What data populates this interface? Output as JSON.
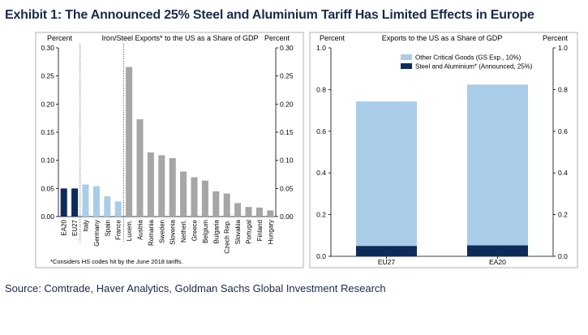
{
  "title": "Exhibit 1: The Announced 25% Steel and Aluminium Tariff Has Limited Effects in Europe",
  "source": "Source: Comtrade, Haver Analytics, Goldman Sachs Global Investment Research",
  "colors": {
    "navy": "#0d2c5a",
    "light_blue": "#a9cde8",
    "gray": "#a6a6a6"
  },
  "chart_data": [
    {
      "type": "bar",
      "title": "Iron/Steel Exports* to the US as a Share of GDP",
      "ylabel_left": "Percent",
      "ylabel_right": "Percent",
      "ylim": [
        0,
        0.3
      ],
      "yticks": [
        "0.00",
        "0.05",
        "0.10",
        "0.15",
        "0.20",
        "0.25",
        "0.30"
      ],
      "footnote": "*Considers HS codes hit by the June 2018 tariffs.",
      "categories": [
        "EA20",
        "EU27",
        "Italy",
        "Germany",
        "Spain",
        "France",
        "Luxem.",
        "Austria",
        "Romania",
        "Sweden",
        "Slovenia",
        "Netherl.",
        "Greece",
        "Belgium",
        "Bulgaria",
        "Czech Rep.",
        "Slovakia",
        "Portugal",
        "Finland",
        "Hungary"
      ],
      "values": [
        0.05,
        0.05,
        0.057,
        0.054,
        0.036,
        0.027,
        0.266,
        0.173,
        0.114,
        0.109,
        0.104,
        0.08,
        0.07,
        0.064,
        0.045,
        0.041,
        0.024,
        0.017,
        0.016,
        0.011
      ],
      "groups": [
        "navy",
        "navy",
        "light_blue",
        "light_blue",
        "light_blue",
        "light_blue",
        "gray",
        "gray",
        "gray",
        "gray",
        "gray",
        "gray",
        "gray",
        "gray",
        "gray",
        "gray",
        "gray",
        "gray",
        "gray",
        "gray"
      ]
    },
    {
      "type": "bar",
      "stacked": true,
      "title": "Exports to the US as a Share of GDP",
      "ylabel_left": "Percent",
      "ylabel_right": "Percent",
      "ylim": [
        0,
        1.0
      ],
      "yticks": [
        "0.0",
        "0.2",
        "0.4",
        "0.6",
        "0.8",
        "1.0"
      ],
      "legend_position": "top-left",
      "categories": [
        "EU27",
        "EA20"
      ],
      "series": [
        {
          "name": "Steel and Aluminium* (Announced, 25%)",
          "values": [
            0.05,
            0.053
          ],
          "color": "navy"
        },
        {
          "name": "Other Critical Goods (GS Exp., 10%)",
          "values": [
            0.693,
            0.771
          ],
          "color": "light_blue"
        }
      ]
    }
  ]
}
